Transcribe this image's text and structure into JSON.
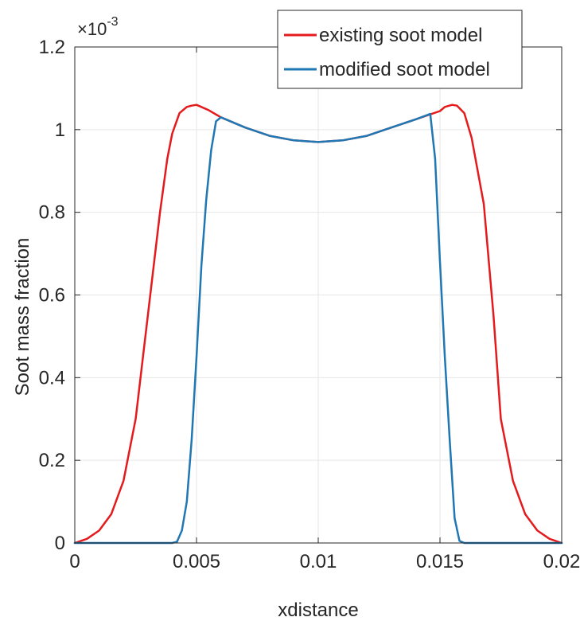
{
  "chart_data": {
    "type": "line",
    "title": "",
    "xlabel": "xdistance",
    "ylabel": "Soot mass fraction",
    "y_exponent_label": {
      "base": "×10",
      "exponent": "-3"
    },
    "xlim": [
      0,
      0.02
    ],
    "ylim": [
      0,
      1.2
    ],
    "x_ticks": [
      0,
      0.005,
      0.01,
      0.015,
      0.02
    ],
    "x_tick_labels": [
      "0",
      "0.005",
      "0.01",
      "0.015",
      "0.02"
    ],
    "y_ticks": [
      0,
      0.2,
      0.4,
      0.6,
      0.8,
      1.0,
      1.2
    ],
    "y_tick_labels": [
      "0",
      "0.2",
      "0.4",
      "0.6",
      "0.8",
      "1",
      "1.2"
    ],
    "grid": true,
    "legend_position": "top-right",
    "series": [
      {
        "name": "existing soot model",
        "color": "#e41a1c",
        "x": [
          0,
          0.0005,
          0.001,
          0.0015,
          0.002,
          0.0025,
          0.003,
          0.0035,
          0.0038,
          0.004,
          0.0043,
          0.0046,
          0.0048,
          0.005,
          0.0052,
          0.0055,
          0.006,
          0.007,
          0.008,
          0.009,
          0.01,
          0.011,
          0.012,
          0.013,
          0.014,
          0.0145,
          0.015,
          0.0152,
          0.0155,
          0.0157,
          0.016,
          0.0163,
          0.0168,
          0.0172,
          0.0175,
          0.018,
          0.0185,
          0.019,
          0.0195,
          0.02
        ],
        "y": [
          0,
          0.01,
          0.03,
          0.07,
          0.15,
          0.3,
          0.55,
          0.8,
          0.93,
          0.99,
          1.04,
          1.055,
          1.058,
          1.06,
          1.055,
          1.047,
          1.03,
          1.005,
          0.985,
          0.974,
          0.97,
          0.974,
          0.985,
          1.005,
          1.025,
          1.035,
          1.045,
          1.055,
          1.06,
          1.058,
          1.04,
          0.98,
          0.82,
          0.55,
          0.3,
          0.15,
          0.07,
          0.03,
          0.01,
          0
        ]
      },
      {
        "name": "modified soot model",
        "color": "#1f77b4",
        "x": [
          0,
          0.002,
          0.004,
          0.0042,
          0.0044,
          0.0046,
          0.0048,
          0.005,
          0.0052,
          0.0054,
          0.0056,
          0.0058,
          0.006,
          0.007,
          0.008,
          0.009,
          0.01,
          0.011,
          0.012,
          0.013,
          0.014,
          0.0146,
          0.0148,
          0.015,
          0.0152,
          0.0154,
          0.0156,
          0.0158,
          0.016,
          0.018,
          0.02
        ],
        "y": [
          0,
          0,
          0,
          0.003,
          0.03,
          0.1,
          0.25,
          0.45,
          0.67,
          0.83,
          0.95,
          1.02,
          1.03,
          1.005,
          0.985,
          0.974,
          0.97,
          0.974,
          0.985,
          1.005,
          1.025,
          1.038,
          0.93,
          0.68,
          0.45,
          0.25,
          0.06,
          0.005,
          0,
          0,
          0
        ]
      }
    ]
  }
}
